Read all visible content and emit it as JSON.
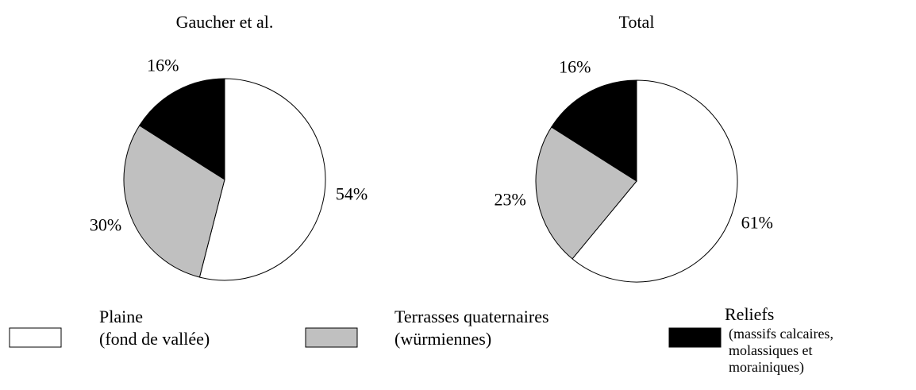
{
  "chart_data": [
    {
      "type": "pie",
      "title": "Gaucher et al.",
      "values": [
        54,
        30,
        16
      ],
      "value_labels": [
        "54%",
        "30%",
        "16%"
      ],
      "colors": [
        "#ffffff",
        "#c0c0c0",
        "#000000"
      ]
    },
    {
      "type": "pie",
      "title": "Total",
      "values": [
        61,
        23,
        16
      ],
      "value_labels": [
        "61%",
        "23%",
        "16%"
      ],
      "colors": [
        "#ffffff",
        "#c0c0c0",
        "#000000"
      ]
    }
  ],
  "legend": {
    "items": [
      {
        "lines": [
          "Plaine",
          "(fond de vallée)"
        ],
        "color": "#ffffff"
      },
      {
        "lines": [
          "Terrasses quaternaires",
          "(würmiennes)"
        ],
        "color": "#c0c0c0"
      },
      {
        "lines": [
          "Reliefs",
          "(massifs calcaires,",
          "molassiques et",
          "morainiques)"
        ],
        "color": "#000000"
      }
    ]
  }
}
